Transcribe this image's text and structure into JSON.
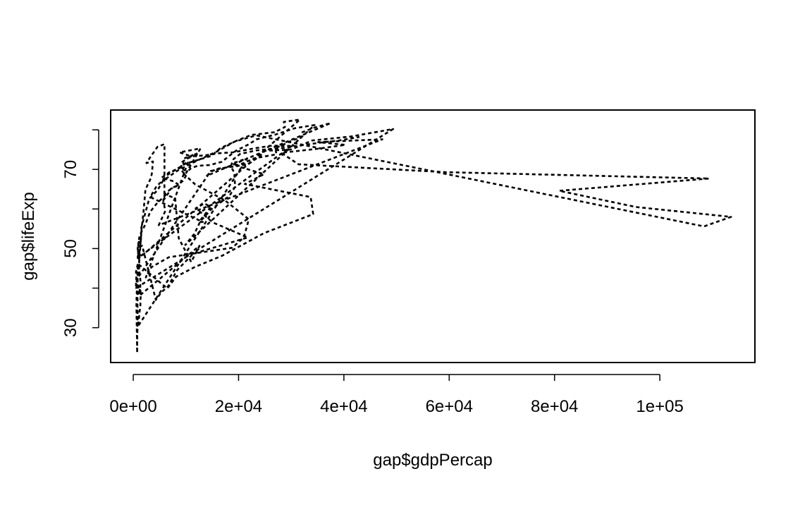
{
  "chart_data": {
    "type": "line",
    "xlabel": "gap$gdpPercap",
    "ylabel": "gap$lifeExp",
    "color": "#000000",
    "dashed": true,
    "xlim": [
      -4290,
      118054
    ],
    "ylim": [
      21.2,
      85.0
    ],
    "xticks": [
      {
        "value": 0,
        "label": "0e+00"
      },
      {
        "value": 20000,
        "label": "2e+04"
      },
      {
        "value": 40000,
        "label": "4e+04"
      },
      {
        "value": 60000,
        "label": "6e+04"
      },
      {
        "value": 80000,
        "label": "8e+04"
      },
      {
        "value": 100000,
        "label": "1e+05"
      }
    ],
    "yticks": [
      30,
      {
        "value": 40,
        "label": null
      },
      50,
      {
        "value": 60,
        "label": null
      },
      70,
      {
        "value": 80,
        "label": null
      }
    ],
    "x": [
      779,
      821,
      853,
      836,
      740,
      786,
      978,
      852,
      649,
      635,
      727,
      975,
      1601,
      1942,
      2313,
      2760,
      3313,
      3533,
      3631,
      3739,
      2497,
      3193,
      4604,
      5937,
      5911,
      6857,
      7133,
      8053,
      9443,
      10079,
      8998,
      9140,
      9308,
      10967,
      8798,
      12779,
      10040,
      10950,
      12217,
      14526,
      16789,
      18334,
      19477,
      21889,
      23425,
      26998,
      30688,
      34435,
      9867,
      11636,
      12753,
      14805,
      18269,
      19340,
      19211,
      18524,
      19036,
      20292,
      23404,
      29796,
      851,
      918,
      984,
      1215,
      2264,
      3215,
      4551,
      6206,
      7954,
      8647,
      11004,
      12570,
      1179,
      1308,
      1390,
      1197,
      1104,
      1134,
      797,
      952,
      1058,
      1005,
      1156,
      1704,
      4293,
      5288,
      6632,
      8359,
      11402,
      21746,
      15113,
      11864,
      13522,
      14723,
      12522,
      13206,
      3217,
      4318,
      6577,
      9848,
      14779,
      16610,
      19384,
      22376,
      26825,
      28817,
      28605,
      31656,
      1031,
      1488,
      1536,
      2029,
      3031,
      4657,
      5623,
      8533,
      12104,
      15994,
      19234,
      23348,
      108382,
      113523,
      95458,
      80895,
      109348,
      59265,
      31354,
      28118,
      34932,
      40301,
      35110,
      47307,
      4834,
      6090,
      5715,
      6006,
      7486,
      8660,
      7641,
      5378,
      6890,
      8755,
      9314,
      10461,
      2388,
      3448,
      6757,
      18773,
      21011,
      21951,
      17364,
      11770,
      9640,
      9467,
      9535,
      12057,
      10095,
      11654,
      13450,
      16362,
      18966,
      23311,
      26298,
      31541,
      33966,
      41283,
      44684,
      49357,
      493,
      540,
      597,
      511,
      591,
      670,
      882,
      848,
      737,
      590,
      786,
      863,
      6459,
      8157,
      11626,
      16903,
      24837,
      34168,
      33693,
      21198,
      24841,
      20586,
      19014,
      21655,
      880,
      1004,
      1116,
      1207,
      1353,
      1348,
      1466,
      1295,
      1069,
      575,
      699,
      863,
      14734,
      17909,
      20431,
      22966,
      27195,
      26982,
      28398,
      30282,
      31872,
      32136,
      34481,
      37506,
      13990,
      14847,
      16173,
      19530,
      21806,
      24073,
      25010,
      29884,
      32004,
      35767,
      39097,
      42952
    ],
    "values": [
      28.8,
      30.3,
      32.0,
      34.0,
      36.1,
      38.4,
      39.9,
      40.8,
      41.7,
      41.8,
      42.1,
      43.8,
      55.2,
      59.3,
      64.8,
      66.2,
      67.7,
      68.9,
      70.4,
      72.0,
      71.6,
      73.0,
      75.7,
      76.4,
      62.5,
      64.4,
      65.1,
      65.6,
      67.1,
      68.5,
      69.9,
      70.8,
      71.9,
      73.3,
      74.3,
      75.3,
      69.1,
      70.3,
      70.9,
      71.1,
      71.9,
      73.5,
      74.7,
      76.3,
      77.6,
      78.8,
      80.4,
      81.2,
      50.9,
      53.8,
      56.9,
      59.9,
      63.3,
      65.6,
      69.1,
      70.8,
      72.6,
      73.9,
      74.8,
      75.6,
      47.6,
      49.6,
      51.5,
      53.3,
      56.0,
      59.3,
      61.5,
      63.6,
      62.7,
      52.6,
      46.6,
      50.7,
      38.1,
      39.8,
      41.7,
      43.6,
      45.6,
      47.4,
      49.5,
      51.1,
      51.7,
      51.6,
      50.5,
      50.7,
      37.0,
      38.9,
      40.5,
      44.6,
      48.7,
      52.8,
      56.6,
      60.2,
      61.4,
      60.5,
      56.8,
      56.7,
      63.0,
      65.5,
      68.7,
      71.4,
      73.4,
      75.4,
      77.1,
      78.7,
      79.4,
      80.7,
      82.0,
      82.6,
      47.5,
      52.7,
      55.3,
      57.7,
      62.6,
      64.8,
      67.1,
      69.8,
      72.2,
      74.6,
      77.0,
      78.6,
      55.6,
      58.0,
      60.5,
      64.6,
      67.7,
      69.3,
      71.3,
      74.2,
      75.2,
      76.2,
      76.9,
      77.6,
      55.9,
      59.5,
      62.1,
      63.9,
      65.4,
      66.1,
      67.0,
      67.9,
      69.3,
      70.3,
      71.0,
      72.0,
      42.7,
      45.3,
      47.8,
      50.2,
      52.8,
      57.4,
      62.2,
      66.2,
      68.8,
      70.5,
      72.7,
      74.0,
      72.7,
      73.4,
      73.5,
      74.1,
      74.3,
      75.4,
      76.0,
      75.9,
      77.3,
      78.3,
      79.1,
      80.2,
      40.0,
      41.5,
      43.0,
      44.1,
      44.6,
      45.0,
      46.2,
      44.0,
      23.6,
      36.1,
      43.4,
      46.2,
      39.9,
      42.9,
      45.3,
      48.2,
      53.9,
      58.7,
      63.0,
      66.3,
      68.8,
      70.5,
      71.6,
      72.8,
      30.3,
      31.6,
      32.8,
      34.1,
      35.4,
      36.8,
      38.4,
      40.0,
      38.3,
      39.9,
      41.0,
      42.6,
      69.6,
      70.6,
      71.3,
      72.8,
      73.8,
      75.4,
      76.2,
      77.4,
      78.0,
      79.4,
      80.6,
      81.7,
      68.4,
      69.5,
      70.2,
      70.8,
      71.3,
      73.4,
      74.7,
      75.0,
      76.1,
      76.8,
      77.3,
      78.2
    ]
  }
}
